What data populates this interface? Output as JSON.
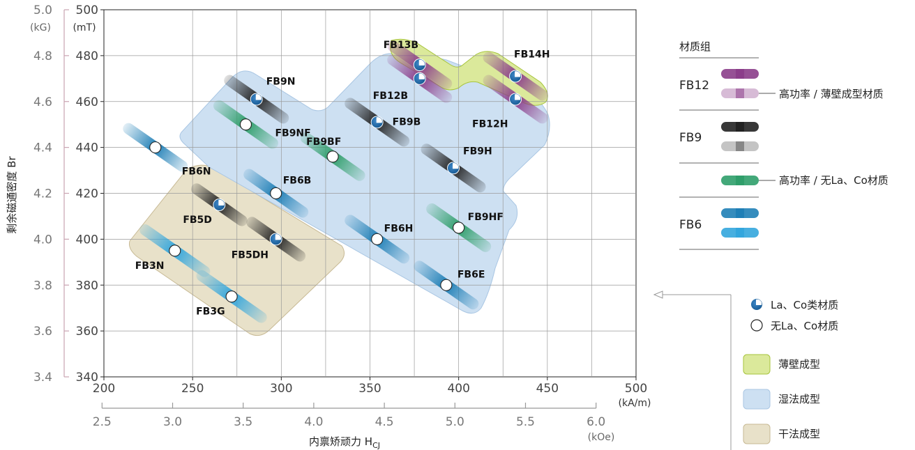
{
  "chart_data": {
    "type": "scatter",
    "xlabel_main": "内禀矫顽力 H",
    "xlabel_sub": "CJ",
    "ylabel": "剩余磁通密度 Br",
    "x_unit_si": "(kA/m)",
    "x_unit_cgs": "(kOe)",
    "y_unit_si": "(mT)",
    "y_unit_cgs": "(kG)",
    "xlim": [
      200,
      500
    ],
    "ylim": [
      340,
      500
    ],
    "x_ticks": [
      "200",
      "250",
      "300",
      "350",
      "400",
      "450",
      "500"
    ],
    "x_ticks_cgs": [
      {
        "value": 2.5,
        "label": "2.5"
      },
      {
        "value": 3.0,
        "label": "3.0"
      },
      {
        "value": 3.5,
        "label": "3.5"
      },
      {
        "value": 4.0,
        "label": "4.0"
      },
      {
        "value": 4.5,
        "label": "4.5"
      },
      {
        "value": 5.0,
        "label": "5.0"
      },
      {
        "value": 5.5,
        "label": "5.5"
      },
      {
        "value": 6.0,
        "label": "6.0"
      }
    ],
    "y_ticks": [
      "340",
      "360",
      "380",
      "400",
      "420",
      "440",
      "460",
      "480",
      "500"
    ],
    "y_ticks_cgs": [
      {
        "value": 3.4,
        "label": "3.4"
      },
      {
        "value": 3.6,
        "label": "3.6"
      },
      {
        "value": 3.8,
        "label": "3.8"
      },
      {
        "value": 4.0,
        "label": "4.0"
      },
      {
        "value": 4.2,
        "label": "4.2"
      },
      {
        "value": 4.4,
        "label": "4.4"
      },
      {
        "value": 4.6,
        "label": "4.6"
      },
      {
        "value": 4.8,
        "label": "4.8"
      },
      {
        "value": 5.0,
        "label": "5.0"
      }
    ],
    "grid": true,
    "points": [
      {
        "name": "FB13B",
        "x": 378,
        "y": 476,
        "marker": "la-co",
        "band": "purple"
      },
      {
        "name": "FB12B",
        "x": 378,
        "y": 470,
        "marker": "la-co",
        "band": "purple"
      },
      {
        "name": "FB14H",
        "x": 432,
        "y": 471,
        "marker": "la-co",
        "band": "purple"
      },
      {
        "name": "FB12H",
        "x": 432,
        "y": 461,
        "marker": "la-co",
        "band": "purple"
      },
      {
        "name": "FB9N",
        "x": 286,
        "y": 461,
        "marker": "la-co",
        "band": "black"
      },
      {
        "name": "FB9B",
        "x": 354,
        "y": 451,
        "marker": "la-co",
        "band": "black"
      },
      {
        "name": "FB9H",
        "x": 397,
        "y": 431,
        "marker": "la-co",
        "band": "black"
      },
      {
        "name": "FB9NF",
        "x": 280,
        "y": 450,
        "marker": "free",
        "band": "green"
      },
      {
        "name": "FB9BF",
        "x": 329,
        "y": 436,
        "marker": "free",
        "band": "green"
      },
      {
        "name": "FB9HF",
        "x": 400,
        "y": 405,
        "marker": "free",
        "band": "green"
      },
      {
        "name": "FB6N",
        "x": 229,
        "y": 440,
        "marker": "free",
        "band": "blue"
      },
      {
        "name": "FB6B",
        "x": 297,
        "y": 420,
        "marker": "free",
        "band": "blue"
      },
      {
        "name": "FB6H",
        "x": 354,
        "y": 400,
        "marker": "free",
        "band": "blue"
      },
      {
        "name": "FB6E",
        "x": 393,
        "y": 380,
        "marker": "free",
        "band": "blue"
      },
      {
        "name": "FB5D",
        "x": 265,
        "y": 415,
        "marker": "la-co",
        "band": "black"
      },
      {
        "name": "FB5DH",
        "x": 297,
        "y": 400,
        "marker": "la-co",
        "band": "black"
      },
      {
        "name": "FB3N",
        "x": 240,
        "y": 395,
        "marker": "free",
        "band": "lightblue"
      },
      {
        "name": "FB3G",
        "x": 272,
        "y": 375,
        "marker": "free",
        "band": "lightblue"
      }
    ],
    "regions": [
      "薄壁成型",
      "湿法成型",
      "干法成型"
    ]
  },
  "legend": {
    "group_title": "材质组",
    "groups": [
      {
        "name": "FB12",
        "note": "高功率 / 薄壁成型材质"
      },
      {
        "name": "FB9",
        "note": ""
      },
      {
        "name": "",
        "note": "高功率 / 无La、Co材质"
      },
      {
        "name": "FB6",
        "note": ""
      }
    ],
    "markers": [
      {
        "kind": "la-co",
        "label": "La、Co类材质"
      },
      {
        "kind": "free",
        "label": "无La、Co材质"
      }
    ],
    "regions": [
      {
        "label": "薄壁成型",
        "color": "#d9e89a"
      },
      {
        "label": "湿法成型",
        "color": "#cfe0f1"
      },
      {
        "label": "干法成型",
        "color": "#e9e1c8"
      }
    ]
  },
  "colors": {
    "thin": "#dbe99b",
    "thin_edge": "#a7c43c",
    "wet": "#cde0f2",
    "wet_edge": "#a9c6e3",
    "dry": "#e8e1c9",
    "dry_edge": "#c7b994",
    "purple": "#8b3d8a",
    "black": "#222222",
    "green": "#2f9e6a",
    "blue": "#1f7fb6",
    "lightblue": "#33a6dd",
    "lacoblue": "#1a5d96"
  }
}
